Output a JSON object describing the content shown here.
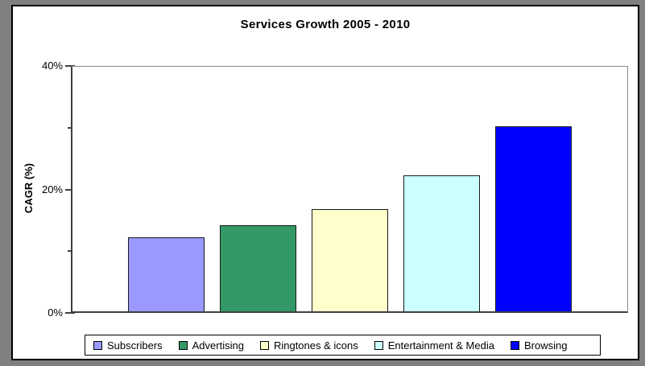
{
  "window": {
    "surround_color": "#808080",
    "frame_border_color": "#000000",
    "background_color": "#ffffff"
  },
  "chart_data": {
    "type": "bar",
    "title": "Services Growth 2005 - 2010",
    "xlabel": "",
    "ylabel": "CAGR (%)",
    "categories": [
      "Subscribers",
      "Advertising",
      "Ringtones & icons",
      "Entertainment & Media",
      "Browsing"
    ],
    "values": [
      12,
      14,
      16.5,
      22,
      30
    ],
    "colors": [
      "#9999FF",
      "#339966",
      "#FFFFCC",
      "#CCFFFF",
      "#0000FF"
    ],
    "ylim": [
      0,
      40
    ],
    "y_major_ticks": [
      {
        "value": 0,
        "label": "0%"
      },
      {
        "value": 20,
        "label": "20%"
      },
      {
        "value": 40,
        "label": "40%"
      }
    ],
    "y_minor_ticks": [
      10,
      30
    ],
    "grid": false,
    "legend_position": "bottom",
    "legend_entries": [
      "Subscribers",
      "Advertising",
      "Ringtones & icons",
      "Entertainment & Media",
      "Browsing"
    ]
  }
}
